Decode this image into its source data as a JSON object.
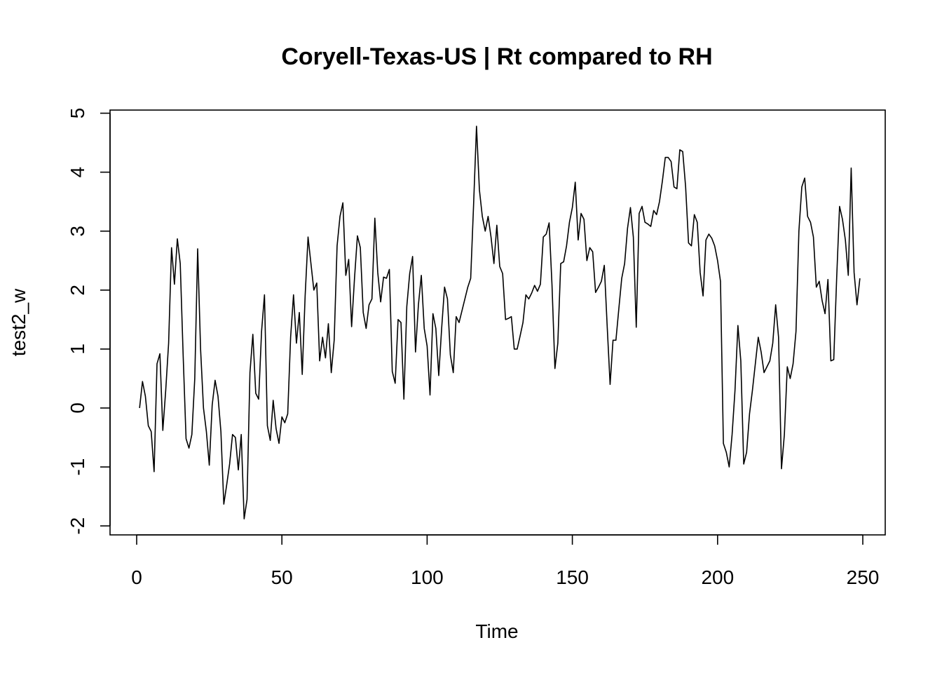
{
  "chart_data": {
    "type": "line",
    "title": "Coryell-Texas-US | Rt compared to RH",
    "xlabel": "Time",
    "ylabel": "test2_w",
    "xlim": [
      1,
      248
    ],
    "ylim": [
      -2,
      4.8
    ],
    "xticks": [
      0,
      50,
      100,
      150,
      200,
      250
    ],
    "yticks": [
      -2,
      -1,
      0,
      1,
      2,
      3,
      4,
      5
    ],
    "grid": false,
    "series": [
      {
        "x_start": 1,
        "values": [
          0.0,
          0.45,
          0.2,
          -0.3,
          -0.4,
          -1.08,
          0.75,
          0.92,
          -0.38,
          0.3,
          1.1,
          2.72,
          2.1,
          2.87,
          2.45,
          0.9,
          -0.52,
          -0.68,
          -0.45,
          0.5,
          2.7,
          1.0,
          0.0,
          -0.4,
          -0.97,
          0.05,
          0.47,
          0.2,
          -0.4,
          -1.63,
          -1.3,
          -0.95,
          -0.45,
          -0.5,
          -1.05,
          -0.45,
          -1.88,
          -1.55,
          0.6,
          1.25,
          0.25,
          0.15,
          1.3,
          1.92,
          -0.3,
          -0.55,
          0.13,
          -0.35,
          -0.6,
          -0.15,
          -0.25,
          -0.1,
          1.2,
          1.92,
          1.1,
          1.62,
          0.57,
          1.9,
          2.9,
          2.45,
          2.0,
          2.12,
          0.8,
          1.2,
          0.85,
          1.43,
          0.6,
          1.15,
          2.75,
          3.25,
          3.48,
          2.25,
          2.52,
          1.38,
          2.2,
          2.92,
          2.72,
          1.62,
          1.35,
          1.75,
          1.85,
          3.22,
          2.3,
          1.8,
          2.22,
          2.2,
          2.35,
          0.62,
          0.42,
          1.5,
          1.45,
          0.15,
          1.72,
          2.28,
          2.57,
          0.95,
          1.75,
          2.25,
          1.35,
          1.05,
          0.22,
          1.6,
          1.35,
          0.55,
          1.35,
          2.05,
          1.85,
          0.9,
          0.6,
          1.55,
          1.45,
          1.65,
          1.85,
          2.05,
          2.2,
          3.45,
          4.78,
          3.7,
          3.25,
          3.0,
          3.25,
          2.9,
          2.45,
          3.1,
          2.4,
          2.28,
          1.5,
          1.52,
          1.55,
          1.0,
          1.0,
          1.22,
          1.45,
          1.92,
          1.85,
          1.95,
          2.08,
          1.98,
          2.1,
          2.9,
          2.95,
          3.14,
          2.08,
          0.67,
          1.1,
          2.45,
          2.48,
          2.75,
          3.15,
          3.4,
          3.83,
          2.85,
          3.3,
          3.2,
          2.5,
          2.72,
          2.65,
          1.96,
          2.05,
          2.15,
          2.42,
          1.38,
          0.4,
          1.15,
          1.15,
          1.68,
          2.2,
          2.45,
          3.05,
          3.4,
          2.9,
          1.37,
          3.3,
          3.42,
          3.15,
          3.12,
          3.08,
          3.35,
          3.28,
          3.5,
          3.85,
          4.25,
          4.25,
          4.18,
          3.75,
          3.72,
          4.38,
          4.35,
          3.75,
          2.8,
          2.75,
          3.28,
          3.15,
          2.3,
          1.9,
          2.85,
          2.95,
          2.88,
          2.75,
          2.5,
          2.15,
          -0.6,
          -0.75,
          -1.0,
          -0.45,
          0.3,
          1.4,
          0.8,
          -0.95,
          -0.75,
          -0.1,
          0.3,
          0.75,
          1.2,
          0.95,
          0.6,
          0.7,
          0.8,
          1.1,
          1.75,
          1.2,
          -1.03,
          -0.45,
          0.7,
          0.5,
          0.75,
          1.3,
          3.0,
          3.75,
          3.9,
          3.25,
          3.15,
          2.9,
          2.05,
          2.15,
          1.82,
          1.6,
          2.18,
          0.8,
          0.82,
          2.2,
          3.42,
          3.2,
          2.85,
          2.25,
          4.07,
          2.3,
          1.75,
          2.2
        ]
      }
    ]
  }
}
